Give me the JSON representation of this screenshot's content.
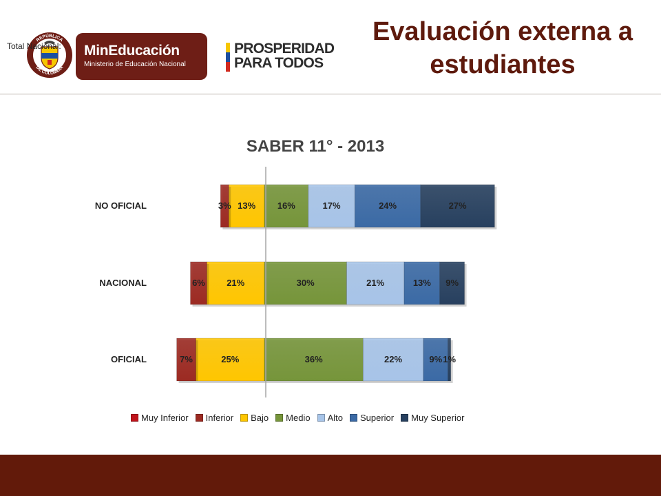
{
  "header": {
    "overlay_text": "Total Nacional:",
    "seal": {
      "top_text": "REPÚBLICA",
      "bottom_text": "DE COLOMBIA"
    },
    "ministry_logo": {
      "name": "MinEducación",
      "subtitle": "Ministerio de Educación Nacional"
    },
    "government_logo": {
      "line1": "PROSPERIDAD",
      "line2": "PARA TODOS"
    },
    "title_line1": "Evaluación externa a",
    "title_line2": "estudiantes"
  },
  "colors": {
    "title": "#5e1a0d",
    "footer": "#621a0a",
    "ministry_logo_bg": "#6e1e16",
    "flag_yellow": "#f6c700",
    "flag_blue": "#1c4fa0",
    "flag_red": "#d12a1f"
  },
  "chart_data": {
    "type": "bar",
    "orientation": "horizontal",
    "stacking": "diverging",
    "title": "SABER 11° - 2013",
    "categories": [
      "NO OFICIAL",
      "NACIONAL",
      "OFICIAL"
    ],
    "series": [
      {
        "name": "Muy Inferior",
        "color": "#c0141c",
        "values": [
          0,
          0,
          0
        ]
      },
      {
        "name": "Inferior",
        "color": "#9c2a22",
        "values": [
          3,
          6,
          7
        ]
      },
      {
        "name": "Bajo",
        "color": "#ffc600",
        "values": [
          13,
          21,
          25
        ]
      },
      {
        "name": "Medio",
        "color": "#76953a",
        "values": [
          16,
          30,
          36
        ]
      },
      {
        "name": "Alto",
        "color": "#a7c4e8",
        "values": [
          17,
          21,
          22
        ]
      },
      {
        "name": "Superior",
        "color": "#3b6aa5",
        "values": [
          24,
          13,
          9
        ]
      },
      {
        "name": "Muy Superior",
        "color": "#27405f",
        "values": [
          27,
          9,
          1
        ]
      }
    ],
    "labels": [
      [
        "",
        "3%",
        "13%",
        "16%",
        "17%",
        "24%",
        "27%"
      ],
      [
        "",
        "6%",
        "21%",
        "30%",
        "21%",
        "13%",
        "9%"
      ],
      [
        "",
        "7%",
        "25%",
        "36%",
        "22%",
        "9%",
        "1%"
      ]
    ],
    "baseline_between": [
      "Bajo",
      "Medio"
    ],
    "legend_position": "bottom",
    "grid": false
  }
}
